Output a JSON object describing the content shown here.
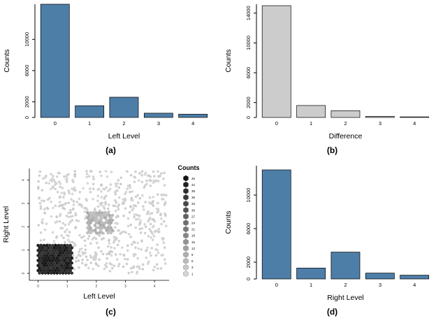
{
  "chart_data": [
    {
      "id": "a",
      "type": "bar",
      "categories": [
        "0",
        "1",
        "2",
        "3",
        "4"
      ],
      "values": [
        14500,
        1500,
        2600,
        550,
        420
      ],
      "xlabel": "Left Level",
      "ylabel": "Counts",
      "ylim": [
        0,
        14500
      ],
      "yticks": [
        0,
        2000,
        6000,
        10000
      ],
      "bar_color": "#4d7ea8",
      "bar_stroke": "#000000",
      "caption": "(a)"
    },
    {
      "id": "b",
      "type": "bar",
      "categories": [
        "0",
        "1",
        "2",
        "3",
        "4"
      ],
      "values": [
        15000,
        1600,
        900,
        150,
        80
      ],
      "xlabel": "Difference",
      "ylabel": "Counts",
      "ylim": [
        0,
        15200
      ],
      "yticks": [
        0,
        2000,
        6000,
        10000,
        14000
      ],
      "bar_color": "#cccccc",
      "bar_stroke": "#000000",
      "caption": "(b)"
    },
    {
      "id": "c",
      "type": "heatmap",
      "subtype": "hexbin",
      "xlabel": "Left Level",
      "ylabel": "Right Level",
      "xlim": [
        0,
        4
      ],
      "ylim": [
        0,
        4
      ],
      "xticks": [
        0,
        1,
        2,
        3,
        4
      ],
      "yticks": [
        0,
        1,
        2,
        3,
        4
      ],
      "legend_title": "Counts",
      "legend_values": [
        45,
        42,
        39,
        36,
        33,
        30,
        27,
        24,
        21,
        18,
        15,
        12,
        9,
        6,
        3,
        1
      ],
      "clusters": [
        {
          "x_range": [
            0,
            1.2
          ],
          "y_range": [
            0,
            1.2
          ],
          "density": "high",
          "color_dark": 20,
          "color_light": 55
        },
        {
          "x_range": [
            1.7,
            2.6
          ],
          "y_range": [
            1.7,
            2.6
          ],
          "density": "medium",
          "color_dark": 165,
          "color_light": 195
        }
      ],
      "scatter_gray": 212,
      "n_background_points": 650,
      "caption": "(c)"
    },
    {
      "id": "d",
      "type": "bar",
      "categories": [
        "0",
        "1",
        "2",
        "3",
        "4"
      ],
      "values": [
        13000,
        1300,
        3200,
        700,
        450
      ],
      "xlabel": "Right Level",
      "ylabel": "Counts",
      "ylim": [
        0,
        13500
      ],
      "yticks": [
        0,
        2000,
        6000,
        10000
      ],
      "bar_color": "#4d7ea8",
      "bar_stroke": "#000000",
      "caption": "(d)"
    }
  ]
}
